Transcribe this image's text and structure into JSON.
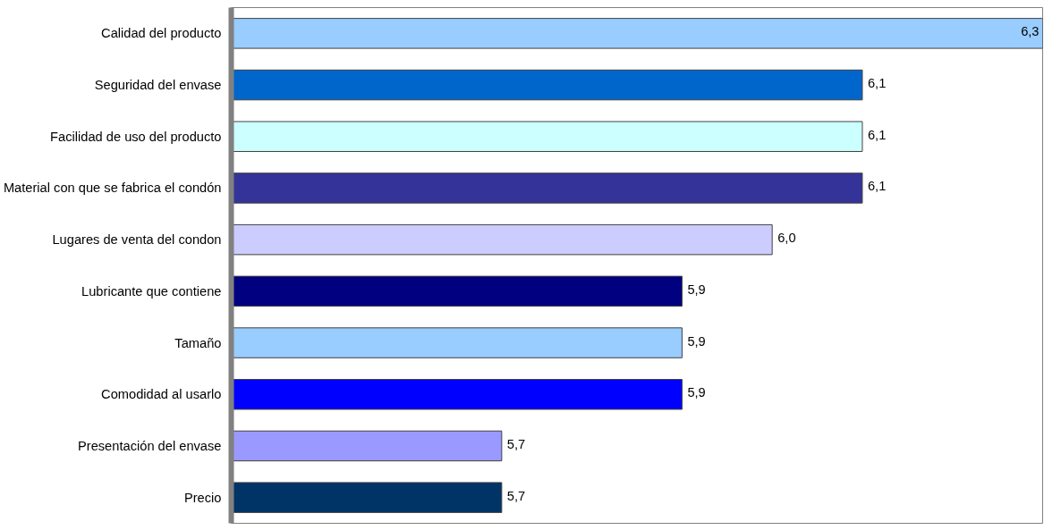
{
  "chart_data": {
    "type": "bar",
    "orientation": "horizontal",
    "categories": [
      "Calidad del producto",
      "Seguridad del envase",
      "Facilidad de uso del producto",
      "Material con que se fabrica el condón",
      "Lugares de venta del condon",
      "Lubricante que contiene",
      "Tamaño",
      "Comodidad al usarlo",
      "Presentación del envase",
      "Precio"
    ],
    "values": [
      6.3,
      6.1,
      6.1,
      6.1,
      6.0,
      5.9,
      5.9,
      5.9,
      5.7,
      5.7
    ],
    "colors": [
      "#99ccff",
      "#0066cc",
      "#ccffff",
      "#333399",
      "#ccccff",
      "#000080",
      "#99ccff",
      "#0000ff",
      "#9999ff",
      "#003366"
    ],
    "value_labels": [
      "6,3",
      "6,1",
      "6,1",
      "6,1",
      "6,0",
      "5,9",
      "5,9",
      "5,9",
      "5,7",
      "5,7"
    ],
    "xlim": [
      5.4,
      6.3
    ],
    "tick_labels": "y",
    "grid": false
  }
}
